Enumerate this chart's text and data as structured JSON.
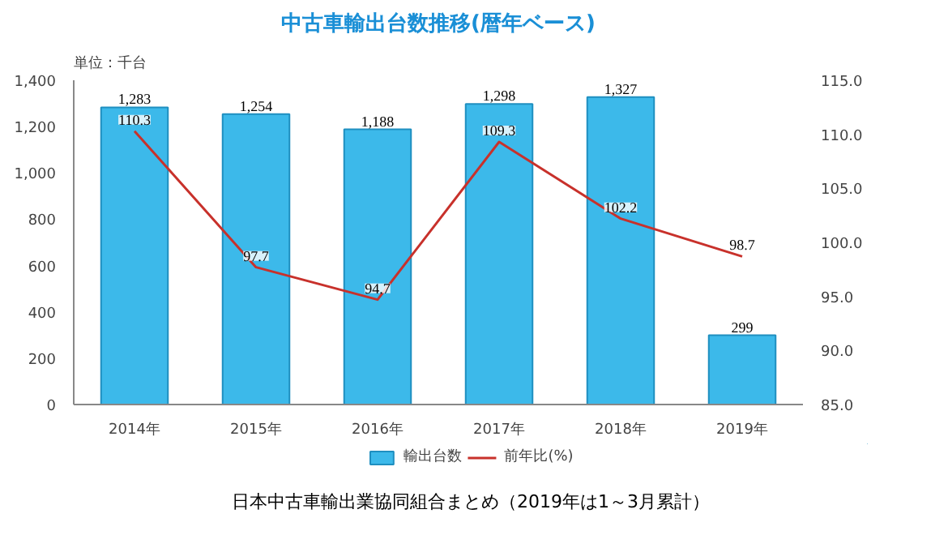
{
  "chart_data": {
    "type": "bar",
    "title": "中古車輸出台数推移(暦年ベース)",
    "ylabel": "単位：千台",
    "annotations": [
      "日本中古車輸出業協同組合まとめ（2019年は1～3月累計）"
    ],
    "categories": [
      "2014年",
      "2015年",
      "2016年",
      "2017年",
      "2018年",
      "2019年"
    ],
    "series": [
      {
        "name": "輸出台数",
        "color": "#3cb9ea",
        "values": [
          1283,
          1254,
          1188,
          1298,
          1327,
          299
        ],
        "value_labels": [
          "1,283",
          "1,254",
          "1,188",
          "1,298",
          "1,327",
          "299"
        ]
      },
      {
        "name": "前年比(%)",
        "type": "line",
        "axis": "y2",
        "color": "#c8312b",
        "values": [
          110.3,
          97.7,
          94.7,
          109.3,
          102.2,
          98.7
        ]
      }
    ],
    "ylim": [
      0,
      1400
    ],
    "yticks": [
      {
        "value": 0,
        "label": "0"
      },
      {
        "value": 200,
        "label": "200"
      },
      {
        "value": 400,
        "label": "400"
      },
      {
        "value": 600,
        "label": "600"
      },
      {
        "value": 800,
        "label": "800"
      },
      {
        "value": 1000,
        "label": "1,000"
      },
      {
        "value": 1200,
        "label": "1,200"
      },
      {
        "value": 1400,
        "label": "1,400"
      }
    ],
    "y2lim": [
      85,
      115
    ],
    "y2ticks": [
      {
        "value": 85,
        "label": "85.0"
      },
      {
        "value": 90,
        "label": "90.0"
      },
      {
        "value": 95,
        "label": "95.0"
      },
      {
        "value": 100,
        "label": "100.0"
      },
      {
        "value": 105,
        "label": "105.0"
      },
      {
        "value": 110,
        "label": "110.0"
      },
      {
        "value": 115,
        "label": "115.0"
      }
    ],
    "data_labels": true,
    "legend": "bottom"
  }
}
